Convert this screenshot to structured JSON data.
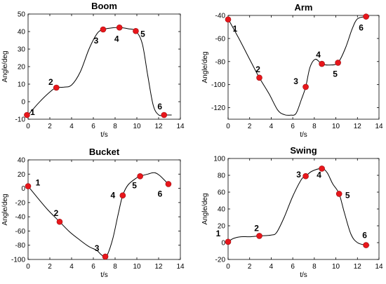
{
  "figure": {
    "colors": {
      "curve": "#000000",
      "marker": "#e8161b",
      "marker_edge": "#9a0d10",
      "axis": "#000000"
    }
  },
  "chart_data": [
    {
      "type": "line",
      "title": "Boom",
      "xlabel": "t/s",
      "ylabel": "Angle/deg",
      "xlim": [
        0,
        14
      ],
      "ylim": [
        -10,
        50
      ],
      "xticks": [
        0,
        2,
        4,
        6,
        8,
        10,
        12,
        14
      ],
      "yticks": [
        -10,
        0,
        10,
        20,
        30,
        40,
        50
      ],
      "grid": false,
      "curve": [
        [
          -0.2,
          -8
        ],
        [
          0,
          -7.5
        ],
        [
          1,
          -0.5
        ],
        [
          2,
          5.5
        ],
        [
          2.6,
          8
        ],
        [
          3.3,
          8.3
        ],
        [
          4,
          9.5
        ],
        [
          4.8,
          17
        ],
        [
          5.6,
          30
        ],
        [
          6.3,
          38.5
        ],
        [
          6.8,
          41
        ],
        [
          7.6,
          42
        ],
        [
          8.4,
          42.3
        ],
        [
          9.2,
          41.6
        ],
        [
          9.9,
          40.3
        ],
        [
          10.5,
          33
        ],
        [
          11,
          15
        ],
        [
          11.5,
          -2
        ],
        [
          12,
          -7.5
        ],
        [
          12.5,
          -7.6
        ],
        [
          13.2,
          -7.6
        ]
      ],
      "points": [
        {
          "label": "1",
          "x": -0.1,
          "y": -7.6
        },
        {
          "label": "2",
          "x": 2.6,
          "y": 8
        },
        {
          "label": "3",
          "x": 6.9,
          "y": 41.2
        },
        {
          "label": "4",
          "x": 8.4,
          "y": 42.3
        },
        {
          "label": "5",
          "x": 9.9,
          "y": 40.3
        },
        {
          "label": "6",
          "x": 12.5,
          "y": -7.6
        }
      ]
    },
    {
      "type": "line",
      "title": "Arm",
      "xlabel": "t/s",
      "ylabel": "Angle/deg",
      "xlim": [
        0,
        14
      ],
      "ylim": [
        -130,
        -40
      ],
      "xticks": [
        0,
        2,
        4,
        6,
        8,
        10,
        12,
        14
      ],
      "yticks": [
        -120,
        -100,
        -80,
        -60,
        -40
      ],
      "grid": false,
      "curve": [
        [
          0,
          -43
        ],
        [
          1,
          -60
        ],
        [
          2,
          -78
        ],
        [
          2.9,
          -94
        ],
        [
          3.8,
          -108
        ],
        [
          4.6,
          -122
        ],
        [
          5.2,
          -126
        ],
        [
          5.8,
          -126.5
        ],
        [
          6.3,
          -125
        ],
        [
          6.8,
          -113
        ],
        [
          7.2,
          -102
        ],
        [
          7.6,
          -85
        ],
        [
          8.1,
          -78
        ],
        [
          8.7,
          -82
        ],
        [
          9.4,
          -83
        ],
        [
          10.2,
          -81
        ],
        [
          10.9,
          -68
        ],
        [
          11.5,
          -52
        ],
        [
          12,
          -43
        ],
        [
          12.8,
          -41
        ],
        [
          13.1,
          -41
        ]
      ],
      "points": [
        {
          "label": "1",
          "x": 0,
          "y": -43.5
        },
        {
          "label": "2",
          "x": 2.9,
          "y": -94
        },
        {
          "label": "3",
          "x": 7.2,
          "y": -102
        },
        {
          "label": "4",
          "x": 8.7,
          "y": -82
        },
        {
          "label": "5",
          "x": 10.2,
          "y": -81
        },
        {
          "label": "6",
          "x": 12.8,
          "y": -41
        }
      ]
    },
    {
      "type": "line",
      "title": "Bucket",
      "xlabel": "t/s",
      "ylabel": "Angle/deg",
      "xlim": [
        0,
        14
      ],
      "ylim": [
        -100,
        40
      ],
      "xticks": [
        0,
        2,
        4,
        6,
        8,
        10,
        12,
        14
      ],
      "yticks": [
        -100,
        -80,
        -60,
        -40,
        -20,
        0,
        20,
        40
      ],
      "grid": false,
      "curve": [
        [
          0,
          3
        ],
        [
          0.8,
          -12
        ],
        [
          1.8,
          -30
        ],
        [
          2.9,
          -47
        ],
        [
          3.8,
          -61
        ],
        [
          4.7,
          -72
        ],
        [
          5.6,
          -82
        ],
        [
          6.3,
          -87
        ],
        [
          6.7,
          -93
        ],
        [
          7,
          -96
        ],
        [
          7.3,
          -93
        ],
        [
          7.8,
          -70
        ],
        [
          8.3,
          -35
        ],
        [
          8.7,
          -10
        ],
        [
          9.2,
          5
        ],
        [
          10,
          15
        ],
        [
          10.3,
          17
        ],
        [
          11,
          20
        ],
        [
          11.6,
          22
        ],
        [
          12.1,
          18
        ],
        [
          12.9,
          6
        ],
        [
          13.1,
          5
        ]
      ],
      "points": [
        {
          "label": "1",
          "x": 0,
          "y": 3
        },
        {
          "label": "2",
          "x": 2.9,
          "y": -47
        },
        {
          "label": "3",
          "x": 7.1,
          "y": -96
        },
        {
          "label": "4",
          "x": 8.7,
          "y": -10
        },
        {
          "label": "5",
          "x": 10.3,
          "y": 17
        },
        {
          "label": "6",
          "x": 12.9,
          "y": 6
        }
      ]
    },
    {
      "type": "line",
      "title": "Swing",
      "xlabel": "t/s",
      "ylabel": "Angle/deg",
      "xlim": [
        0,
        14
      ],
      "ylim": [
        -20,
        100
      ],
      "xticks": [
        0,
        2,
        4,
        6,
        8,
        10,
        12,
        14
      ],
      "yticks": [
        -20,
        0,
        20,
        40,
        60,
        80,
        100
      ],
      "grid": false,
      "curve": [
        [
          0,
          1
        ],
        [
          0.5,
          5
        ],
        [
          1.2,
          7
        ],
        [
          2,
          7
        ],
        [
          2.9,
          8
        ],
        [
          4,
          9
        ],
        [
          4.5,
          12
        ],
        [
          5.2,
          30
        ],
        [
          6,
          55
        ],
        [
          6.8,
          75
        ],
        [
          7.2,
          79
        ],
        [
          7.8,
          85
        ],
        [
          8.7,
          88
        ],
        [
          9.2,
          83
        ],
        [
          9.7,
          70
        ],
        [
          10.3,
          58
        ],
        [
          10.8,
          35
        ],
        [
          11.4,
          10
        ],
        [
          12,
          0
        ],
        [
          12.8,
          -3
        ],
        [
          13.1,
          -3
        ]
      ],
      "points": [
        {
          "label": "1",
          "x": 0,
          "y": 1
        },
        {
          "label": "2",
          "x": 2.9,
          "y": 8
        },
        {
          "label": "3",
          "x": 7.2,
          "y": 79
        },
        {
          "label": "4",
          "x": 8.7,
          "y": 88
        },
        {
          "label": "5",
          "x": 10.3,
          "y": 58
        },
        {
          "label": "6",
          "x": 12.8,
          "y": -3
        }
      ]
    }
  ]
}
